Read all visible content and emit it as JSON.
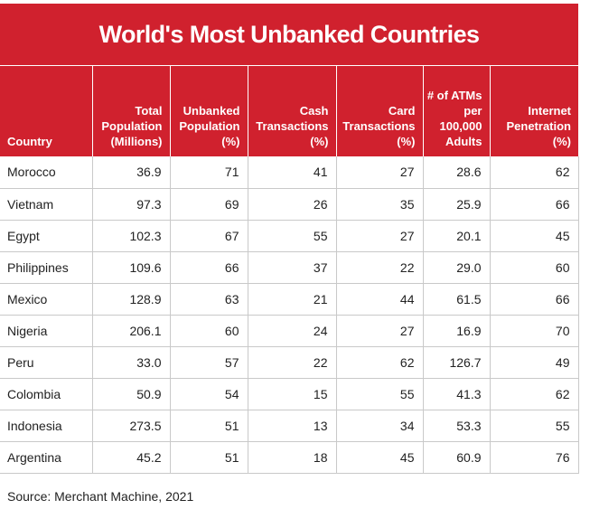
{
  "chart_data": {
    "type": "table",
    "title": "World's Most Unbanked Countries",
    "columns": [
      "Country",
      "Total Population (Millions)",
      "Unbanked Population (%)",
      "Cash Transactions (%)",
      "Card Transactions (%)",
      "# of ATMs per 100,000 Adults",
      "Internet Penetration (%)"
    ],
    "rows": [
      [
        "Morocco",
        "36.9",
        "71",
        "41",
        "27",
        "28.6",
        "62"
      ],
      [
        "Vietnam",
        "97.3",
        "69",
        "26",
        "35",
        "25.9",
        "66"
      ],
      [
        "Egypt",
        "102.3",
        "67",
        "55",
        "27",
        "20.1",
        "45"
      ],
      [
        "Philippines",
        "109.6",
        "66",
        "37",
        "22",
        "29.0",
        "60"
      ],
      [
        "Mexico",
        "128.9",
        "63",
        "21",
        "44",
        "61.5",
        "66"
      ],
      [
        "Nigeria",
        "206.1",
        "60",
        "24",
        "27",
        "16.9",
        "70"
      ],
      [
        "Peru",
        "33.0",
        "57",
        "22",
        "62",
        "126.7",
        "49"
      ],
      [
        "Colombia",
        "50.9",
        "54",
        "15",
        "55",
        "41.3",
        "62"
      ],
      [
        "Indonesia",
        "273.5",
        "51",
        "13",
        "34",
        "53.3",
        "55"
      ],
      [
        "Argentina",
        "45.2",
        "51",
        "18",
        "45",
        "60.9",
        "76"
      ]
    ],
    "source": "Source: Merchant Machine, 2021"
  },
  "colors": {
    "header_background": "#d0212e",
    "header_text": "#ffffff",
    "grid_lines": "#c9c9c9",
    "body_text": "#222222"
  }
}
